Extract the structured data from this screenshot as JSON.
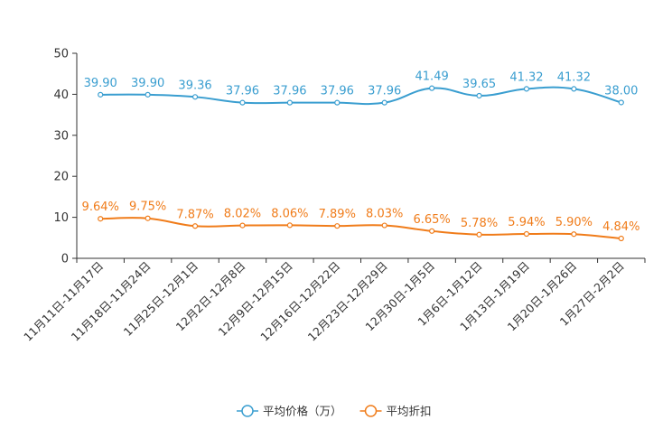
{
  "chart_data": {
    "type": "line",
    "title": "",
    "xlabel": "",
    "ylabel": "",
    "ylim": [
      0,
      50
    ],
    "yticks": [
      0,
      10,
      20,
      30,
      40,
      50
    ],
    "grid": false,
    "legend_position": "bottom-center",
    "categories": [
      "11月11日-11月17日",
      "11月18日-11月24日",
      "11月25日-12月1日",
      "12月2日-12月8日",
      "12月9日-12月15日",
      "12月16日-12月22日",
      "12月23日-12月29日",
      "12月30日-1月5日",
      "1月6日-1月12日",
      "1月13日-1月19日",
      "1月20日-1月26日",
      "1月27日-2月2日"
    ],
    "series": [
      {
        "name": "平均价格（万）",
        "color": "#3a9ed0",
        "values": [
          39.9,
          39.9,
          39.36,
          37.96,
          37.96,
          37.96,
          37.96,
          41.49,
          39.65,
          41.32,
          41.32,
          38.0
        ],
        "labels": [
          "39.90",
          "39.90",
          "39.36",
          "37.96",
          "37.96",
          "37.96",
          "37.96",
          "41.49",
          "39.65",
          "41.32",
          "41.32",
          "38.00"
        ]
      },
      {
        "name": "平均折扣",
        "color": "#f07c1a",
        "values": [
          9.64,
          9.75,
          7.87,
          8.02,
          8.06,
          7.89,
          8.03,
          6.65,
          5.78,
          5.94,
          5.9,
          4.84
        ],
        "labels": [
          "9.64%",
          "9.75%",
          "7.87%",
          "8.02%",
          "8.06%",
          "7.89%",
          "8.03%",
          "6.65%",
          "5.78%",
          "5.94%",
          "5.90%",
          "4.84%"
        ]
      }
    ]
  }
}
